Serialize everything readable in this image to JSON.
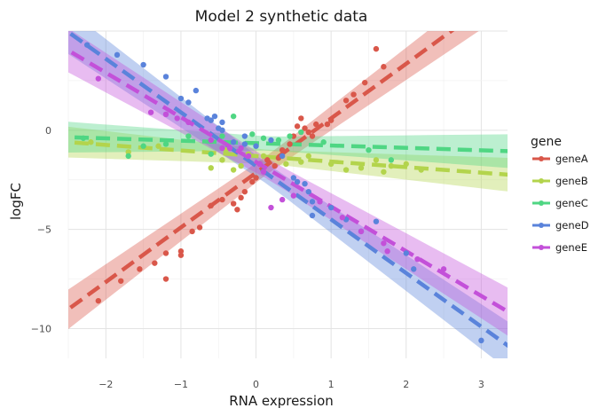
{
  "chart_data": {
    "type": "scatter",
    "title": "Model 2 synthetic data",
    "xlabel": "RNA expression",
    "ylabel": "logFC",
    "xlim": [
      -2.5,
      3.35
    ],
    "ylim": [
      -11.5,
      5.0
    ],
    "x_ticks": [
      -2,
      -1,
      0,
      1,
      2,
      3
    ],
    "y_ticks": [
      0,
      -5,
      -10
    ],
    "grid": true,
    "legend": {
      "title": "gene",
      "position": "right"
    },
    "series": [
      {
        "name": "geneA",
        "color": "#D9574A",
        "fit": {
          "slope": 2.75,
          "intercept": -2.15,
          "band": 0.45
        },
        "points": [
          [
            -2.1,
            -8.6
          ],
          [
            -1.8,
            -7.6
          ],
          [
            -1.55,
            -7.0
          ],
          [
            -1.35,
            -6.7
          ],
          [
            -1.2,
            -6.2
          ],
          [
            -1.2,
            -7.5
          ],
          [
            -1.0,
            -6.1
          ],
          [
            -1.0,
            -6.3
          ],
          [
            -0.85,
            -5.1
          ],
          [
            -0.75,
            -4.9
          ],
          [
            -0.6,
            -3.8
          ],
          [
            -0.45,
            -3.5
          ],
          [
            -0.3,
            -3.7
          ],
          [
            -0.25,
            -4.0
          ],
          [
            -0.2,
            -3.4
          ],
          [
            -0.15,
            -3.1
          ],
          [
            -0.05,
            -2.6
          ],
          [
            0.0,
            -2.4
          ],
          [
            0.05,
            -1.7
          ],
          [
            0.15,
            -1.5
          ],
          [
            0.25,
            -1.8
          ],
          [
            0.3,
            -1.4
          ],
          [
            0.35,
            -1.0
          ],
          [
            0.45,
            -0.7
          ],
          [
            0.5,
            -0.3
          ],
          [
            0.55,
            0.2
          ],
          [
            0.6,
            0.6
          ],
          [
            0.65,
            0.1
          ],
          [
            0.7,
            -0.1
          ],
          [
            0.75,
            -0.3
          ],
          [
            0.8,
            0.3
          ],
          [
            0.95,
            0.3
          ],
          [
            1.0,
            0.5
          ],
          [
            1.2,
            1.5
          ],
          [
            1.3,
            1.8
          ],
          [
            1.45,
            2.4
          ],
          [
            1.6,
            4.1
          ],
          [
            1.7,
            3.2
          ]
        ]
      },
      {
        "name": "geneB",
        "color": "#B3D44C",
        "fit": {
          "slope": -0.28,
          "intercept": -1.3,
          "band": 0.35
        },
        "points": [
          [
            -2.2,
            -0.6
          ],
          [
            -1.7,
            -1.1
          ],
          [
            -1.3,
            -0.8
          ],
          [
            -0.6,
            -1.9
          ],
          [
            -0.45,
            -1.5
          ],
          [
            -0.4,
            -1.0
          ],
          [
            -0.3,
            -2.0
          ],
          [
            -0.2,
            -1.8
          ],
          [
            -0.1,
            -1.2
          ],
          [
            0.1,
            -1.3
          ],
          [
            0.4,
            -1.7
          ],
          [
            0.6,
            -1.6
          ],
          [
            0.7,
            -1.3
          ],
          [
            1.0,
            -1.7
          ],
          [
            1.2,
            -2.0
          ],
          [
            1.4,
            -1.9
          ],
          [
            1.6,
            -1.5
          ],
          [
            1.7,
            -2.1
          ],
          [
            1.8,
            -1.8
          ],
          [
            2.0,
            -1.7
          ],
          [
            2.2,
            -2.0
          ]
        ]
      },
      {
        "name": "geneC",
        "color": "#4FD683",
        "fit": {
          "slope": -0.12,
          "intercept": -0.65,
          "band": 0.35
        },
        "points": [
          [
            -2.3,
            -0.4
          ],
          [
            -1.7,
            -1.3
          ],
          [
            -1.5,
            -0.8
          ],
          [
            -1.2,
            -0.7
          ],
          [
            -0.9,
            -0.3
          ],
          [
            -0.6,
            -1.2
          ],
          [
            -0.45,
            -0.3
          ],
          [
            -0.3,
            0.7
          ],
          [
            -0.05,
            -0.2
          ],
          [
            0.1,
            -0.4
          ],
          [
            0.3,
            -0.5
          ],
          [
            0.45,
            -0.3
          ],
          [
            0.6,
            -0.1
          ],
          [
            0.9,
            -0.6
          ],
          [
            1.5,
            -1.0
          ],
          [
            1.8,
            -1.5
          ]
        ]
      },
      {
        "name": "geneD",
        "color": "#5A83DB",
        "fit": {
          "slope": -2.7,
          "intercept": -1.8,
          "band": 0.5
        },
        "points": [
          [
            -2.25,
            4.3
          ],
          [
            -1.85,
            3.8
          ],
          [
            -1.5,
            3.3
          ],
          [
            -1.2,
            2.7
          ],
          [
            -1.0,
            1.6
          ],
          [
            -0.9,
            1.4
          ],
          [
            -0.8,
            2.0
          ],
          [
            -0.65,
            0.6
          ],
          [
            -0.6,
            0.5
          ],
          [
            -0.55,
            0.7
          ],
          [
            -0.5,
            0.1
          ],
          [
            -0.45,
            0.4
          ],
          [
            -0.45,
            0.0
          ],
          [
            -0.3,
            -0.6
          ],
          [
            -0.15,
            -0.3
          ],
          [
            -0.15,
            -0.7
          ],
          [
            0.0,
            -0.8
          ],
          [
            0.2,
            -0.5
          ],
          [
            0.35,
            -1.3
          ],
          [
            0.5,
            -2.4
          ],
          [
            0.55,
            -2.6
          ],
          [
            0.65,
            -2.7
          ],
          [
            0.7,
            -3.1
          ],
          [
            0.75,
            -3.6
          ],
          [
            0.75,
            -4.3
          ],
          [
            1.0,
            -3.9
          ],
          [
            1.2,
            -4.5
          ],
          [
            1.4,
            -5.1
          ],
          [
            1.6,
            -4.6
          ],
          [
            2.0,
            -6.2
          ],
          [
            2.1,
            -7.0
          ],
          [
            3.0,
            -10.6
          ]
        ]
      },
      {
        "name": "geneE",
        "color": "#C350D9",
        "fit": {
          "slope": -2.25,
          "intercept": -1.6,
          "band": 0.5
        },
        "points": [
          [
            -2.1,
            2.6
          ],
          [
            -1.4,
            0.9
          ],
          [
            -1.2,
            0.8
          ],
          [
            -1.05,
            0.6
          ],
          [
            -0.9,
            0.4
          ],
          [
            -0.6,
            -0.5
          ],
          [
            -0.45,
            -0.9
          ],
          [
            -0.35,
            -0.9
          ],
          [
            -0.2,
            -0.9
          ],
          [
            -0.1,
            -1.3
          ],
          [
            0.05,
            -1.7
          ],
          [
            0.1,
            -2.1
          ],
          [
            0.2,
            -3.9
          ],
          [
            0.35,
            -3.5
          ],
          [
            0.5,
            -3.3
          ],
          [
            0.85,
            -3.6
          ],
          [
            1.15,
            -4.4
          ],
          [
            1.4,
            -5.1
          ],
          [
            1.7,
            -5.7
          ],
          [
            1.75,
            -6.1
          ],
          [
            2.15,
            -6.5
          ],
          [
            2.5,
            -7.0
          ]
        ]
      }
    ]
  }
}
